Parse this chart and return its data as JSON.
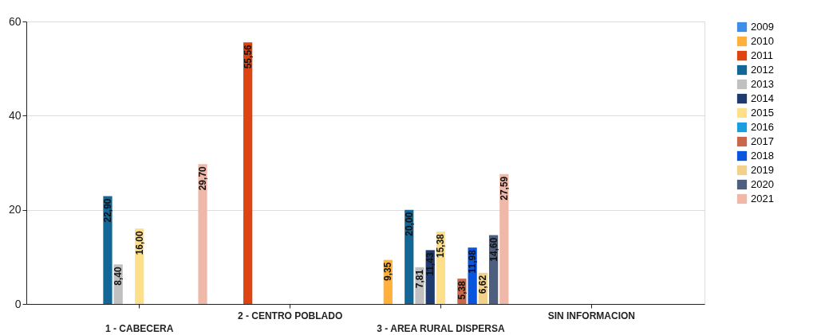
{
  "chart_data": {
    "type": "bar",
    "categories": [
      "1 - CABECERA",
      "2 - CENTRO POBLADO",
      "3 - AREA RURAL DISPERSA",
      "SIN INFORMACION"
    ],
    "series": [
      {
        "name": "2009",
        "color": "#3e8ee8",
        "values": [
          null,
          null,
          null,
          null
        ],
        "value_labels": [
          null,
          null,
          null,
          null
        ]
      },
      {
        "name": "2010",
        "color": "#ffb13b",
        "values": [
          null,
          null,
          9.35,
          null
        ],
        "value_labels": [
          null,
          null,
          "9,35",
          null
        ]
      },
      {
        "name": "2011",
        "color": "#dd4411",
        "values": [
          null,
          55.56,
          null,
          null
        ],
        "value_labels": [
          null,
          "55,56",
          null,
          null
        ]
      },
      {
        "name": "2012",
        "color": "#136796",
        "values": [
          22.9,
          null,
          20.0,
          null
        ],
        "value_labels": [
          "22,90",
          null,
          "20,00",
          null
        ]
      },
      {
        "name": "2013",
        "color": "#c0c0c0",
        "values": [
          8.4,
          null,
          7.81,
          null
        ],
        "value_labels": [
          "8,40",
          null,
          "7,81",
          null
        ]
      },
      {
        "name": "2014",
        "color": "#1e3a6e",
        "values": [
          null,
          null,
          11.43,
          null
        ],
        "value_labels": [
          null,
          null,
          "11,43",
          null
        ]
      },
      {
        "name": "2015",
        "color": "#ffe08a",
        "values": [
          16.0,
          null,
          15.38,
          null
        ],
        "value_labels": [
          "16,00",
          null,
          "15,38",
          null
        ]
      },
      {
        "name": "2016",
        "color": "#1a9ee0",
        "values": [
          null,
          null,
          null,
          null
        ],
        "value_labels": [
          null,
          null,
          null,
          null
        ]
      },
      {
        "name": "2017",
        "color": "#c8674a",
        "values": [
          null,
          null,
          5.38,
          null
        ],
        "value_labels": [
          null,
          null,
          "5,38",
          null
        ]
      },
      {
        "name": "2018",
        "color": "#0a55dd",
        "values": [
          null,
          null,
          11.98,
          null
        ],
        "value_labels": [
          null,
          null,
          "11,98",
          null
        ]
      },
      {
        "name": "2019",
        "color": "#f2d28a",
        "values": [
          null,
          null,
          6.62,
          null
        ],
        "value_labels": [
          null,
          null,
          "6,62",
          null
        ]
      },
      {
        "name": "2020",
        "color": "#4d5e7e",
        "values": [
          null,
          null,
          14.6,
          null
        ],
        "value_labels": [
          null,
          null,
          "14,60",
          null
        ]
      },
      {
        "name": "2021",
        "color": "#f0b8a8",
        "values": [
          29.7,
          null,
          27.59,
          null
        ],
        "value_labels": [
          "29,70",
          null,
          "27,59",
          null
        ]
      }
    ],
    "ylim": [
      0,
      60
    ],
    "yticks": [
      0,
      20,
      40,
      60
    ],
    "grid": "y",
    "legend": "top right"
  }
}
